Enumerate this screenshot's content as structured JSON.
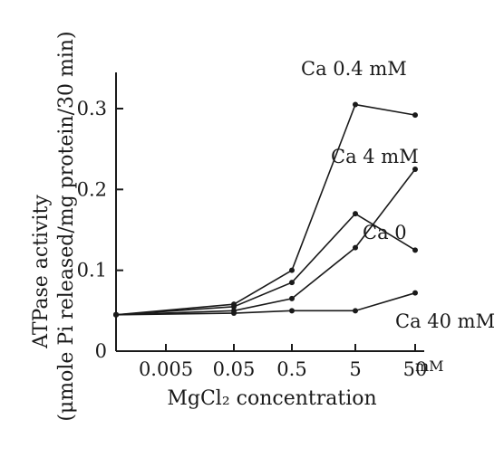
{
  "chart_data": {
    "type": "line",
    "x_scale": "log",
    "x_categories": [
      "",
      "0.005",
      "0.05",
      "0.5",
      "5",
      "50"
    ],
    "x_unit": "mM",
    "y_ticks": [
      {
        "value": 0,
        "label": "0"
      },
      {
        "value": 0.1,
        "label": "0.1"
      },
      {
        "value": 0.2,
        "label": "0.2"
      },
      {
        "value": 0.3,
        "label": "0.3"
      }
    ],
    "ylim": [
      0,
      0.35
    ],
    "xlabel": "MgCl₂ concentration",
    "ylabel_line1": "ATPase activity",
    "ylabel_line2": "(μmole Pi released/mg protein/30 min)",
    "grid": false,
    "series": [
      {
        "name": "Ca 0.4 mM",
        "x": [
          0,
          0.05,
          0.5,
          5,
          50
        ],
        "y": [
          0.045,
          0.058,
          0.1,
          0.305,
          0.292
        ]
      },
      {
        "name": "Ca 4 mM",
        "x": [
          0,
          0.05,
          0.5,
          5,
          50
        ],
        "y": [
          0.045,
          0.05,
          0.065,
          0.128,
          0.225
        ]
      },
      {
        "name": "Ca 0",
        "x": [
          0,
          0.05,
          0.5,
          5,
          50
        ],
        "y": [
          0.045,
          0.055,
          0.085,
          0.17,
          0.125
        ]
      },
      {
        "name": "Ca 40 mM",
        "x": [
          0,
          0.05,
          0.5,
          5,
          50
        ],
        "y": [
          0.045,
          0.047,
          0.05,
          0.05,
          0.072
        ]
      }
    ]
  }
}
